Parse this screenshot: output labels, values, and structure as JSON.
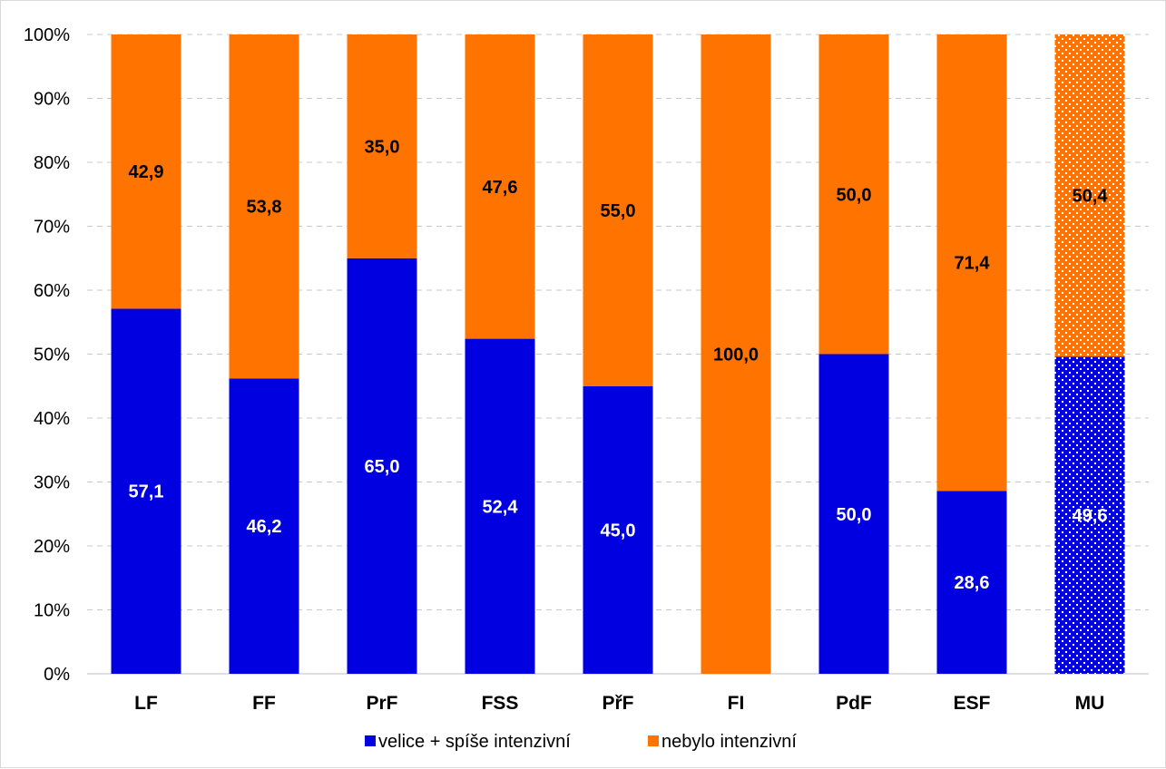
{
  "chart_data": {
    "type": "bar",
    "stacked": true,
    "normalized_percent": true,
    "categories": [
      "LF",
      "FF",
      "PrF",
      "FSS",
      "PřF",
      "FI",
      "PdF",
      "ESF",
      "MU"
    ],
    "series": [
      {
        "name": "velice + spíše intenzivní",
        "color": "#0000e0",
        "values": [
          57.1,
          46.2,
          65.0,
          52.4,
          45.0,
          0,
          50.0,
          28.6,
          49.6
        ],
        "labels": [
          "57,1",
          "46,2",
          "65,0",
          "52,4",
          "45,0",
          "",
          "50,0",
          "28,6",
          "49,6"
        ]
      },
      {
        "name": "nebylo intenzivní",
        "color": "#ff7400",
        "values": [
          42.9,
          53.8,
          35.0,
          47.6,
          55.0,
          100.0,
          50.0,
          71.4,
          50.4
        ],
        "labels": [
          "42,9",
          "53,8",
          "35,0",
          "47,6",
          "55,0",
          "100,0",
          "50,0",
          "71,4",
          "50,4"
        ]
      }
    ],
    "patterned_categories": [
      "MU"
    ],
    "y_ticks": [
      "0%",
      "10%",
      "20%",
      "30%",
      "40%",
      "50%",
      "60%",
      "70%",
      "80%",
      "90%",
      "100%"
    ],
    "ylim": [
      0,
      100
    ],
    "grid": true,
    "legend_position": "bottom",
    "title": "",
    "xlabel": "",
    "ylabel": ""
  }
}
